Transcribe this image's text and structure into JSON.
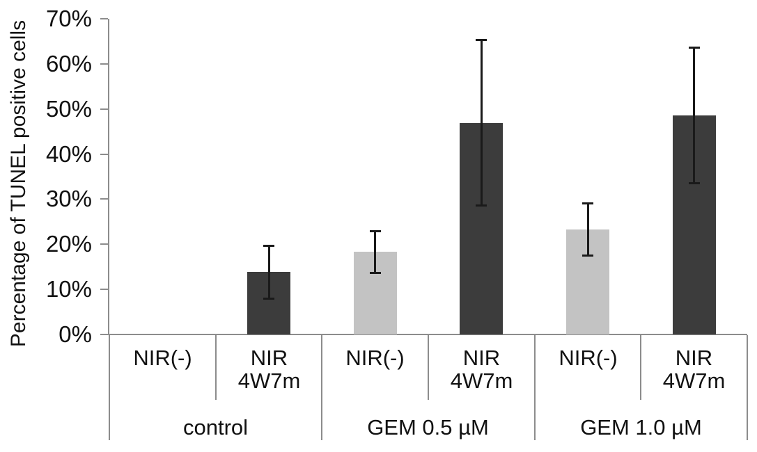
{
  "chart_data": {
    "type": "bar",
    "title": "",
    "ylabel": "Percentage of TUNEL positive cells",
    "xlabel": "",
    "ylim": [
      0,
      70
    ],
    "ytick_values": [
      70,
      60,
      50,
      40,
      30,
      20,
      10,
      0
    ],
    "ytick_labels": [
      "70%",
      "60%",
      "50%",
      "40%",
      "30%",
      "20%",
      "10%",
      "0%"
    ],
    "grid": false,
    "legend_position": "none",
    "error_bars": true,
    "groups": [
      {
        "label": "control",
        "bars": [
          {
            "label": "NIR(-)",
            "label_lines": [
              "NIR(-)"
            ],
            "value": 0,
            "error": 0,
            "color_key": "light"
          },
          {
            "label": "NIR 4W7m",
            "label_lines": [
              "NIR",
              "4W7m"
            ],
            "value": 13.8,
            "error": 6.0,
            "color_key": "dark"
          }
        ]
      },
      {
        "label": "GEM 0.5 µM",
        "bars": [
          {
            "label": "NIR(-)",
            "label_lines": [
              "NIR(-)"
            ],
            "value": 18.3,
            "error": 4.7,
            "color_key": "light"
          },
          {
            "label": "NIR 4W7m",
            "label_lines": [
              "NIR",
              "4W7m"
            ],
            "value": 46.9,
            "error": 18.4,
            "color_key": "dark"
          }
        ]
      },
      {
        "label": "GEM 1.0 µM",
        "bars": [
          {
            "label": "NIR(-)",
            "label_lines": [
              "NIR(-)"
            ],
            "value": 23.3,
            "error": 5.8,
            "color_key": "light"
          },
          {
            "label": "NIR 4W7m",
            "label_lines": [
              "NIR",
              "4W7m"
            ],
            "value": 48.6,
            "error": 15.1,
            "color_key": "dark"
          }
        ]
      }
    ],
    "colors": {
      "light": "#c3c3c3",
      "dark": "#3c3c3c",
      "axis": "#8c8c8c",
      "error_bar": "#1a1a1a",
      "text": "#111111"
    }
  }
}
